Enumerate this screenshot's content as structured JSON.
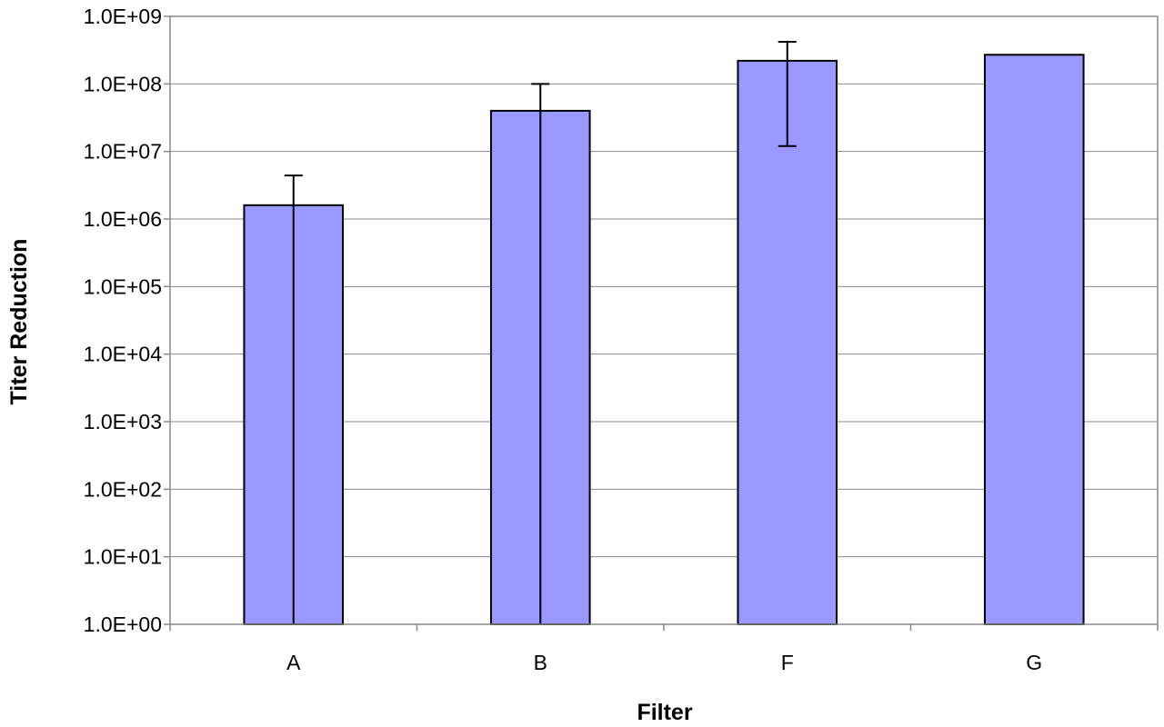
{
  "chart_data": {
    "type": "bar",
    "title": "",
    "xlabel": "Filter",
    "ylabel": "Titer Reduction",
    "yscale": "log",
    "ylim": [
      1,
      1000000000
    ],
    "yticks": [
      1,
      10,
      100,
      1000,
      10000,
      100000,
      1000000,
      10000000,
      100000000,
      1000000000
    ],
    "ytick_labels": [
      "1.0E+00",
      "1.0E+01",
      "1.0E+02",
      "1.0E+03",
      "1.0E+04",
      "1.0E+05",
      "1.0E+06",
      "1.0E+07",
      "1.0E+08",
      "1.0E+09"
    ],
    "categories": [
      "A",
      "B",
      "F",
      "G"
    ],
    "values": [
      1600000,
      40000000,
      220000000,
      270000000
    ],
    "error_bars": [
      {
        "low": 1,
        "high": 4400000
      },
      {
        "low": 1,
        "high": 100000000
      },
      {
        "low": 12000000,
        "high": 420000000
      },
      null
    ],
    "grid": "horizontal",
    "bar_color": "#9999ff",
    "bar_edge_color": "#000000",
    "legend": "none"
  }
}
